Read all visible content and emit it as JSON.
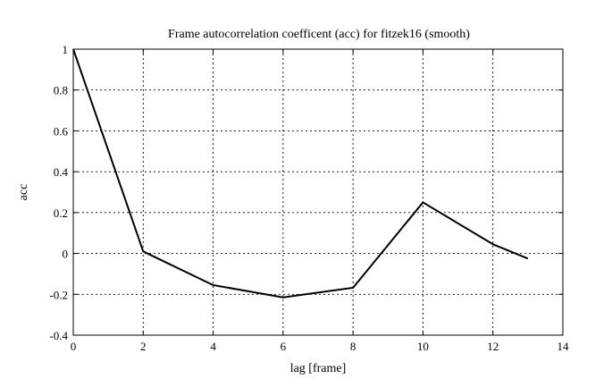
{
  "chart_data": {
    "type": "line",
    "title": "Frame autocorrelation coefficent (acc) for fitzek16 (smooth)",
    "xlabel": "lag [frame]",
    "ylabel": "acc",
    "xlim": [
      0,
      14
    ],
    "ylim": [
      -0.4,
      1
    ],
    "xticks": [
      0,
      2,
      4,
      6,
      8,
      10,
      12,
      14
    ],
    "yticks": [
      -0.4,
      -0.2,
      0,
      0.2,
      0.4,
      0.6,
      0.8,
      1
    ],
    "xtick_labels": [
      "0",
      "2",
      "4",
      "6",
      "8",
      "10",
      "12",
      "14"
    ],
    "ytick_labels": [
      "-0.4",
      "-0.2",
      "0",
      "0.2",
      "0.4",
      "0.6",
      "0.8",
      "1"
    ],
    "grid": true,
    "series": [
      {
        "x": [
          0,
          2,
          4,
          6,
          8,
          10,
          12,
          13
        ],
        "y": [
          1.0,
          0.01,
          -0.155,
          -0.215,
          -0.168,
          0.25,
          0.045,
          -0.025
        ]
      }
    ]
  }
}
